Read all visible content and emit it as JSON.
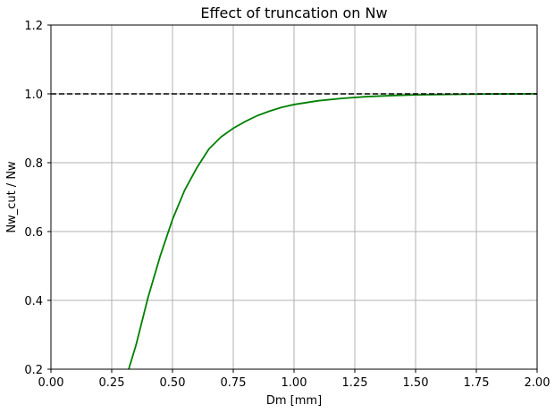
{
  "chart_data": {
    "type": "line",
    "title": "Effect of truncation on Nw",
    "xlabel": "Dm [mm]",
    "ylabel": "Nw_cut / Nw",
    "xlim": [
      0.0,
      2.0
    ],
    "ylim": [
      0.2,
      1.2
    ],
    "grid": true,
    "xticks": [
      0.0,
      0.25,
      0.5,
      0.75,
      1.0,
      1.25,
      1.5,
      1.75,
      2.0
    ],
    "xtick_labels": [
      "0.00",
      "0.25",
      "0.50",
      "0.75",
      "1.00",
      "1.25",
      "1.50",
      "1.75",
      "2.00"
    ],
    "yticks": [
      0.2,
      0.4,
      0.6,
      0.8,
      1.0,
      1.2
    ],
    "ytick_labels": [
      "0.2",
      "0.4",
      "0.6",
      "0.8",
      "1.0",
      "1.2"
    ],
    "series": [
      {
        "style": "solid",
        "color": "#008000",
        "x": [
          0.32,
          0.35,
          0.4,
          0.45,
          0.5,
          0.55,
          0.6,
          0.65,
          0.7,
          0.75,
          0.8,
          0.85,
          0.9,
          0.95,
          1.0,
          1.1,
          1.2,
          1.3,
          1.4,
          1.5,
          1.6,
          1.7,
          1.8,
          1.9,
          2.0
        ],
        "y": [
          0.2,
          0.27,
          0.41,
          0.53,
          0.635,
          0.72,
          0.785,
          0.84,
          0.875,
          0.9,
          0.92,
          0.937,
          0.95,
          0.961,
          0.969,
          0.98,
          0.987,
          0.992,
          0.995,
          0.997,
          0.998,
          0.999,
          0.9995,
          0.9998,
          1.0
        ]
      },
      {
        "style": "dashed",
        "color": "#000000",
        "x": [
          0.0,
          2.0
        ],
        "y": [
          1.0,
          1.0
        ]
      }
    ]
  }
}
